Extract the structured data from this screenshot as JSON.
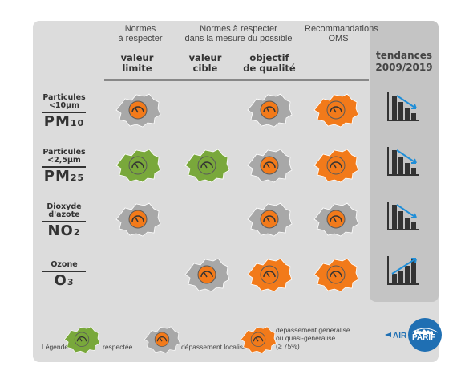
{
  "headers": {
    "normes": "Normes\nà respecter",
    "normes_mesure": "Normes à respecter\ndans la mesure du possible",
    "oms": "Recommandations\nOMS",
    "valeur_limite": "valeur\nlimite",
    "valeur_cible": "valeur\ncible",
    "objectif_qualite": "objectif\nde qualité",
    "tendances": "tendances\n2009/2019"
  },
  "pollutants": [
    {
      "top": "Particules\n<10µm",
      "formula": "PM",
      "sub": "10"
    },
    {
      "top": "Particules\n<2,5µm",
      "formula": "PM",
      "sub": "25"
    },
    {
      "top": "Dioxyde\nd'azote",
      "formula": "NO",
      "sub": "2"
    },
    {
      "top": "Ozone",
      "formula": "O",
      "sub": "3"
    }
  ],
  "status_colors": {
    "respectee": "#79a83b",
    "localise": "#a8a8a8",
    "generalise": "#f27a1a"
  },
  "grid": [
    [
      "localise",
      null,
      "localise",
      "generalise"
    ],
    [
      "respectee",
      "respectee",
      "localise",
      "generalise"
    ],
    [
      "localise",
      null,
      "localise",
      "localise"
    ],
    [
      null,
      "localise",
      "generalise",
      "generalise"
    ]
  ],
  "trends": [
    "down-arrow-bars",
    "down-arrow-bars",
    "down-arrow-bars",
    "up-arrow-bars"
  ],
  "legend": {
    "label": "Légende :",
    "respectee": "respectée",
    "localise": "dépassement localisé",
    "generalise": "dépassement généralisé\nou quasi-généralisé\n(≥ 75%)"
  },
  "logo": {
    "text1": "AIR",
    "text2": "PARIF"
  }
}
